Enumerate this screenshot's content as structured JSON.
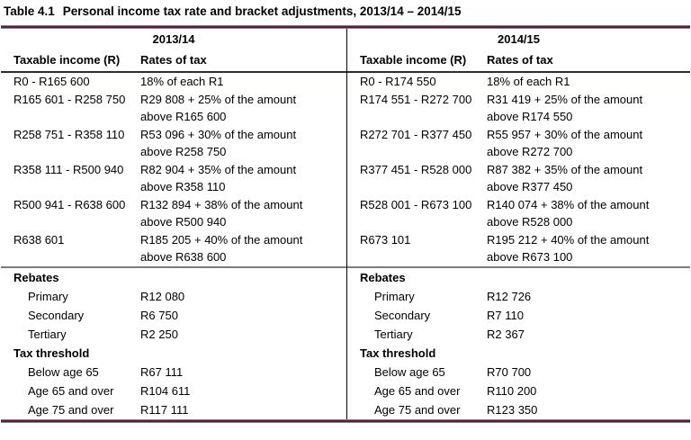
{
  "title": {
    "label": "Table 4.1",
    "text": "Personal income tax rate and bracket adjustments, 2013/14 – 2014/15"
  },
  "columns": {
    "income": "Taxable income (R)",
    "rates": "Rates of tax"
  },
  "years": [
    {
      "year": "2013/14",
      "brackets": [
        {
          "income": "R0 - R165 600",
          "rate": "18% of each R1"
        },
        {
          "income": "R165 601 - R258 750",
          "rate": "R29 808 + 25% of the amount",
          "cont": "above R165 600"
        },
        {
          "income": "R258 751 - R358 110",
          "rate": "R53 096 + 30% of the amount",
          "cont": "above R258 750"
        },
        {
          "income": "R358 111 - R500 940",
          "rate": "R82 904 + 35% of the amount",
          "cont": "above R358 110"
        },
        {
          "income": "R500 941 - R638 600",
          "rate": "R132 894 + 38% of the amount",
          "cont": "above R500 940"
        },
        {
          "income": "R638 601",
          "rate": "R185 205 + 40% of the amount",
          "cont": "above R638 600"
        }
      ],
      "rebates": {
        "heading": "Rebates",
        "items": [
          {
            "label": "Primary",
            "value": "R12 080"
          },
          {
            "label": "Secondary",
            "value": "R6 750"
          },
          {
            "label": "Tertiary",
            "value": "R2 250"
          }
        ]
      },
      "threshold": {
        "heading": "Tax threshold",
        "items": [
          {
            "label": "Below age 65",
            "value": "R67 111"
          },
          {
            "label": "Age 65 and over",
            "value": "R104 611"
          },
          {
            "label": "Age 75 and over",
            "value": "R117 111"
          }
        ]
      }
    },
    {
      "year": "2014/15",
      "brackets": [
        {
          "income": "R0 - R174 550",
          "rate": "18% of each R1"
        },
        {
          "income": "R174 551 - R272 700",
          "rate": "R31 419 + 25% of the amount",
          "cont": "above R174 550"
        },
        {
          "income": "R272 701 - R377 450",
          "rate": "R55 957 + 30% of the amount",
          "cont": "above R272 700"
        },
        {
          "income": "R377 451 - R528 000",
          "rate": "R87 382 + 35% of the amount",
          "cont": "above R377 450"
        },
        {
          "income": "R528 001 - R673 100",
          "rate": "R140 074 + 38% of the amount",
          "cont": "above R528 000"
        },
        {
          "income": "R673 101",
          "rate": "R195 212 + 40% of the amount",
          "cont": "above R673 100"
        }
      ],
      "rebates": {
        "heading": "Rebates",
        "items": [
          {
            "label": "Primary",
            "value": "R12 726"
          },
          {
            "label": "Secondary",
            "value": "R7 110"
          },
          {
            "label": "Tertiary",
            "value": "R2 367"
          }
        ]
      },
      "threshold": {
        "heading": "Tax threshold",
        "items": [
          {
            "label": "Below age 65",
            "value": "R70 700"
          },
          {
            "label": "Age 65 and over",
            "value": "R110 200"
          },
          {
            "label": "Age 75 and over",
            "value": "R123 350"
          }
        ]
      }
    }
  ],
  "colors": {
    "rule_accent": "#a96c80",
    "rule_core": "#32313b",
    "header_rule": "#2d2d34",
    "section_rule": "#7c7c7c",
    "divider": "#000000",
    "text": "#000000"
  }
}
